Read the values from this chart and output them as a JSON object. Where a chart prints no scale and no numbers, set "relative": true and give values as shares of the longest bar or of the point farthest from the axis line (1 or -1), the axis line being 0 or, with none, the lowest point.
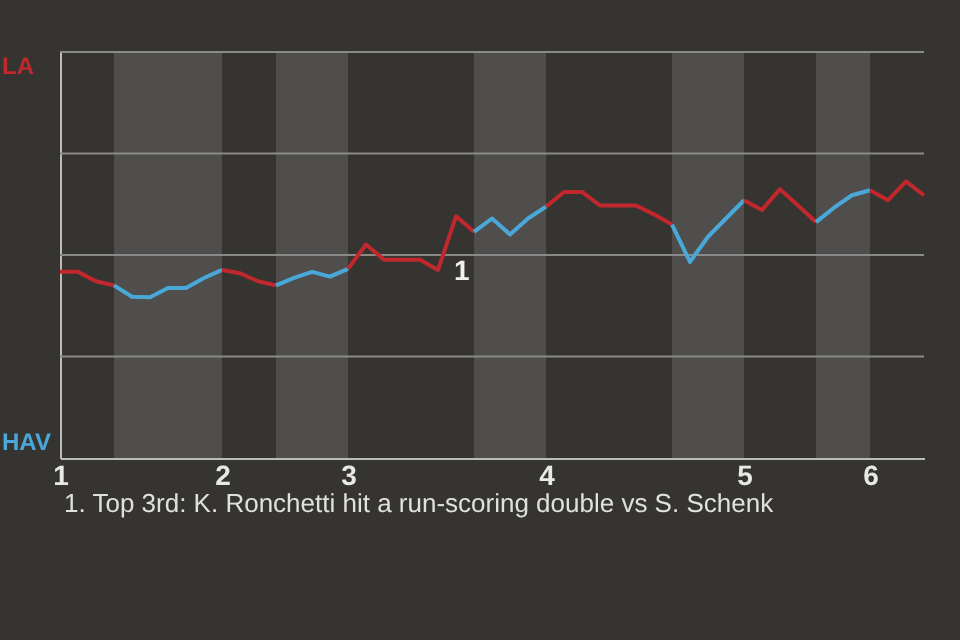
{
  "chart_data": {
    "type": "line",
    "relative": true,
    "categories": [
      "1",
      null,
      null,
      null,
      null,
      null,
      null,
      null,
      null,
      "2",
      null,
      null,
      null,
      null,
      null,
      null,
      "3",
      null,
      null,
      null,
      null,
      null,
      null,
      null,
      null,
      null,
      null,
      "4",
      null,
      null,
      null,
      null,
      null,
      null,
      null,
      null,
      null,
      null,
      "5",
      null,
      null,
      null,
      null,
      null,
      null,
      "6",
      null,
      null,
      null
    ],
    "series": [
      {
        "color": "#c0282d",
        "values": [
          0.673,
          0.673,
          0.639,
          0.624,
          null,
          null,
          null,
          null,
          null,
          null,
          null,
          null,
          null,
          null,
          null,
          null,
          null,
          null,
          null,
          null,
          null,
          null,
          null,
          null,
          null,
          null,
          null,
          null,
          null,
          null,
          null,
          null,
          null,
          null,
          null,
          null,
          null,
          null,
          null,
          null,
          null,
          null,
          null,
          null,
          null,
          null,
          null,
          null,
          null
        ]
      },
      {
        "color": "#4aa8d8",
        "values": [
          null,
          null,
          null,
          0.624,
          0.583,
          0.581,
          0.615,
          0.615,
          0.651,
          0.68,
          null,
          null,
          null,
          null,
          null,
          null,
          null,
          null,
          null,
          null,
          null,
          null,
          null,
          null,
          null,
          null,
          null,
          null,
          null,
          null,
          null,
          null,
          null,
          null,
          null,
          null,
          null,
          null,
          null,
          null,
          null,
          null,
          null,
          null,
          null,
          null,
          null,
          null,
          null
        ]
      },
      {
        "color": "#c0282d",
        "values": [
          null,
          null,
          null,
          null,
          null,
          null,
          null,
          null,
          null,
          0.68,
          0.668,
          0.639,
          0.624,
          null,
          null,
          null,
          null,
          null,
          null,
          null,
          null,
          null,
          null,
          null,
          null,
          null,
          null,
          null,
          null,
          null,
          null,
          null,
          null,
          null,
          null,
          null,
          null,
          null,
          null,
          null,
          null,
          null,
          null,
          null,
          null,
          null,
          null,
          null,
          null
        ]
      },
      {
        "color": "#4aa8d8",
        "values": [
          null,
          null,
          null,
          null,
          null,
          null,
          null,
          null,
          null,
          null,
          null,
          null,
          0.624,
          0.651,
          0.673,
          0.656,
          0.684,
          null,
          null,
          null,
          null,
          null,
          null,
          null,
          null,
          null,
          null,
          null,
          null,
          null,
          null,
          null,
          null,
          null,
          null,
          null,
          null,
          null,
          null,
          null,
          null,
          null,
          null,
          null,
          null,
          null,
          null,
          null,
          null
        ]
      },
      {
        "color": "#c0282d",
        "values": [
          null,
          null,
          null,
          null,
          null,
          null,
          null,
          null,
          null,
          null,
          null,
          null,
          null,
          null,
          null,
          null,
          0.684,
          0.772,
          0.717,
          0.717,
          0.717,
          0.68,
          0.874,
          0.818,
          null,
          null,
          null,
          null,
          null,
          null,
          null,
          null,
          null,
          null,
          null,
          null,
          null,
          null,
          null,
          null,
          null,
          null,
          null,
          null,
          null,
          null,
          null,
          null,
          null
        ]
      },
      {
        "color": "#4aa8d8",
        "values": [
          null,
          null,
          null,
          null,
          null,
          null,
          null,
          null,
          null,
          null,
          null,
          null,
          null,
          null,
          null,
          null,
          null,
          null,
          null,
          null,
          null,
          null,
          null,
          0.818,
          0.866,
          0.808,
          0.866,
          0.909,
          null,
          null,
          null,
          null,
          null,
          null,
          null,
          null,
          null,
          null,
          null,
          null,
          null,
          null,
          null,
          null,
          null,
          null,
          null,
          null,
          null
        ]
      },
      {
        "color": "#c0282d",
        "values": [
          null,
          null,
          null,
          null,
          null,
          null,
          null,
          null,
          null,
          null,
          null,
          null,
          null,
          null,
          null,
          null,
          null,
          null,
          null,
          null,
          null,
          null,
          null,
          null,
          null,
          null,
          null,
          0.909,
          0.962,
          0.962,
          0.913,
          0.913,
          0.913,
          0.881,
          0.844,
          null,
          null,
          null,
          null,
          null,
          null,
          null,
          null,
          null,
          null,
          null,
          null,
          null,
          null
        ]
      },
      {
        "color": "#4aa8d8",
        "values": [
          null,
          null,
          null,
          null,
          null,
          null,
          null,
          null,
          null,
          null,
          null,
          null,
          null,
          null,
          null,
          null,
          null,
          null,
          null,
          null,
          null,
          null,
          null,
          null,
          null,
          null,
          null,
          null,
          null,
          null,
          null,
          null,
          null,
          null,
          0.844,
          0.709,
          0.8,
          0.866,
          0.932,
          null,
          null,
          null,
          null,
          null,
          null,
          null,
          null,
          null,
          null
        ]
      },
      {
        "color": "#c0282d",
        "values": [
          null,
          null,
          null,
          null,
          null,
          null,
          null,
          null,
          null,
          null,
          null,
          null,
          null,
          null,
          null,
          null,
          null,
          null,
          null,
          null,
          null,
          null,
          null,
          null,
          null,
          null,
          null,
          null,
          null,
          null,
          null,
          null,
          null,
          null,
          null,
          null,
          null,
          null,
          0.932,
          0.897,
          0.972,
          0.913,
          0.853,
          null,
          null,
          null,
          null,
          null,
          null
        ]
      },
      {
        "color": "#4aa8d8",
        "values": [
          null,
          null,
          null,
          null,
          null,
          null,
          null,
          null,
          null,
          null,
          null,
          null,
          null,
          null,
          null,
          null,
          null,
          null,
          null,
          null,
          null,
          null,
          null,
          null,
          null,
          null,
          null,
          null,
          null,
          null,
          null,
          null,
          null,
          null,
          null,
          null,
          null,
          null,
          null,
          null,
          null,
          null,
          0.853,
          0.905,
          0.95,
          0.968,
          null,
          null,
          null
        ]
      },
      {
        "color": "#c0282d",
        "values": [
          null,
          null,
          null,
          null,
          null,
          null,
          null,
          null,
          null,
          null,
          null,
          null,
          null,
          null,
          null,
          null,
          null,
          null,
          null,
          null,
          null,
          null,
          null,
          null,
          null,
          null,
          null,
          null,
          null,
          null,
          null,
          null,
          null,
          null,
          null,
          null,
          null,
          null,
          null,
          null,
          null,
          null,
          null,
          null,
          null,
          0.968,
          0.932,
          1,
          0.95
        ]
      }
    ],
    "ref_lines": [
      {
        "axis": "y",
        "value": 0.367,
        "color": "#8a8a8a"
      },
      {
        "axis": "y",
        "value": 0.734,
        "color": "#8a8a8a"
      },
      {
        "axis": "y",
        "value": 1.101,
        "color": "#8a8a8a"
      },
      {
        "axis": "y",
        "value": 1.468,
        "color": "#8a8a8a"
      }
    ],
    "annotations": [
      "LA",
      "HAV",
      "1",
      "1. Top 3rd: K. Ronchetti hit a run-scoring double vs S. Schenk"
    ]
  }
}
